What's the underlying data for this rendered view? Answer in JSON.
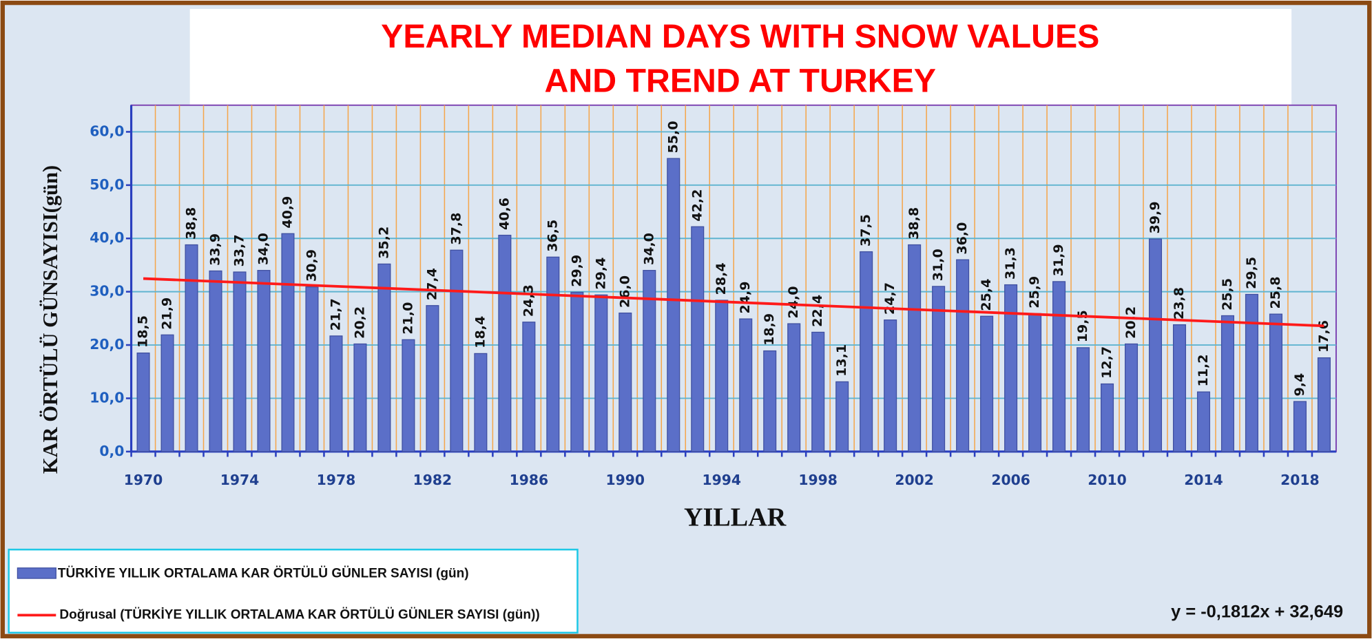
{
  "chart_data": {
    "type": "bar",
    "title_lines": [
      "YEARLY MEDIAN DAYS WITH SNOW VALUES",
      "AND TREND AT TURKEY"
    ],
    "y_label": "KAR ÖRTÜLÜ GÜNSAYISI(gün)",
    "x_label": "YILLAR",
    "categories": [
      "1970",
      null,
      null,
      null,
      "1974",
      null,
      null,
      null,
      "1978",
      null,
      null,
      null,
      "1982",
      null,
      null,
      null,
      "1986",
      null,
      null,
      null,
      "1990",
      null,
      null,
      null,
      "1994",
      null,
      null,
      null,
      "1998",
      null,
      null,
      null,
      "2002",
      null,
      null,
      null,
      "2006",
      null,
      null,
      null,
      "2010",
      null,
      null,
      null,
      "2014",
      null,
      null,
      null,
      "2018",
      null
    ],
    "series": [
      {
        "name": "TÜRKİYE YILLIK ORTALAMA  KAR ÖRTÜLÜ GÜNLER SAYISI (gün)",
        "color": "#5b6fc8",
        "values": [
          18.5,
          21.9,
          38.8,
          33.9,
          33.7,
          34.0,
          40.9,
          30.9,
          21.7,
          20.2,
          35.2,
          21.0,
          27.4,
          37.8,
          18.4,
          40.6,
          24.3,
          36.5,
          29.9,
          29.4,
          26.0,
          34.0,
          55.0,
          42.2,
          28.4,
          24.9,
          18.9,
          24.0,
          22.4,
          13.1,
          37.5,
          24.7,
          38.8,
          31.0,
          36.0,
          25.4,
          31.3,
          25.9,
          31.9,
          19.5,
          12.7,
          20.2,
          39.9,
          23.8,
          11.2,
          25.5,
          29.5,
          25.8,
          9.4,
          17.6
        ],
        "value_labels": [
          "18,5",
          "21,9",
          "38,8",
          "33,9",
          "33,7",
          "34,0",
          "40,9",
          "30,9",
          "21,7",
          "20,2",
          "35,2",
          "21,0",
          "27,4",
          "37,8",
          "18,4",
          "40,6",
          "24,3",
          "36,5",
          "29,9",
          "29,4",
          "26,0",
          "34,0",
          "55,0",
          "42,2",
          "28,4",
          "24,9",
          "18,9",
          "24,0",
          "22,4",
          "13,1",
          "37,5",
          "24,7",
          "38,8",
          "31,0",
          "36,0",
          "25,4",
          "31,3",
          "25,9",
          "31,9",
          "19,5",
          "12,7",
          "20,2",
          "39,9",
          "23,8",
          "11,2",
          "25,5",
          "29,5",
          "25,8",
          "9,4",
          "17,6"
        ]
      }
    ],
    "trend": {
      "name": "Doğrusal (TÜRKİYE YILLIK ORTALAMA  KAR ÖRTÜLÜ GÜNLER SAYISI (gün))",
      "equation": "y = -0,1812x + 32,649",
      "slope": -0.1812,
      "intercept": 32.649,
      "color": "#ff1a1a"
    },
    "ylim": [
      0,
      65
    ],
    "yticks": [
      {
        "value": 0,
        "label": "0,0"
      },
      {
        "value": 10,
        "label": "10,0"
      },
      {
        "value": 20,
        "label": "20,0"
      },
      {
        "value": 30,
        "label": "30,0"
      },
      {
        "value": 40,
        "label": "40,0"
      },
      {
        "value": 50,
        "label": "50,0"
      },
      {
        "value": 60,
        "label": "60,0"
      }
    ],
    "grid": true
  }
}
